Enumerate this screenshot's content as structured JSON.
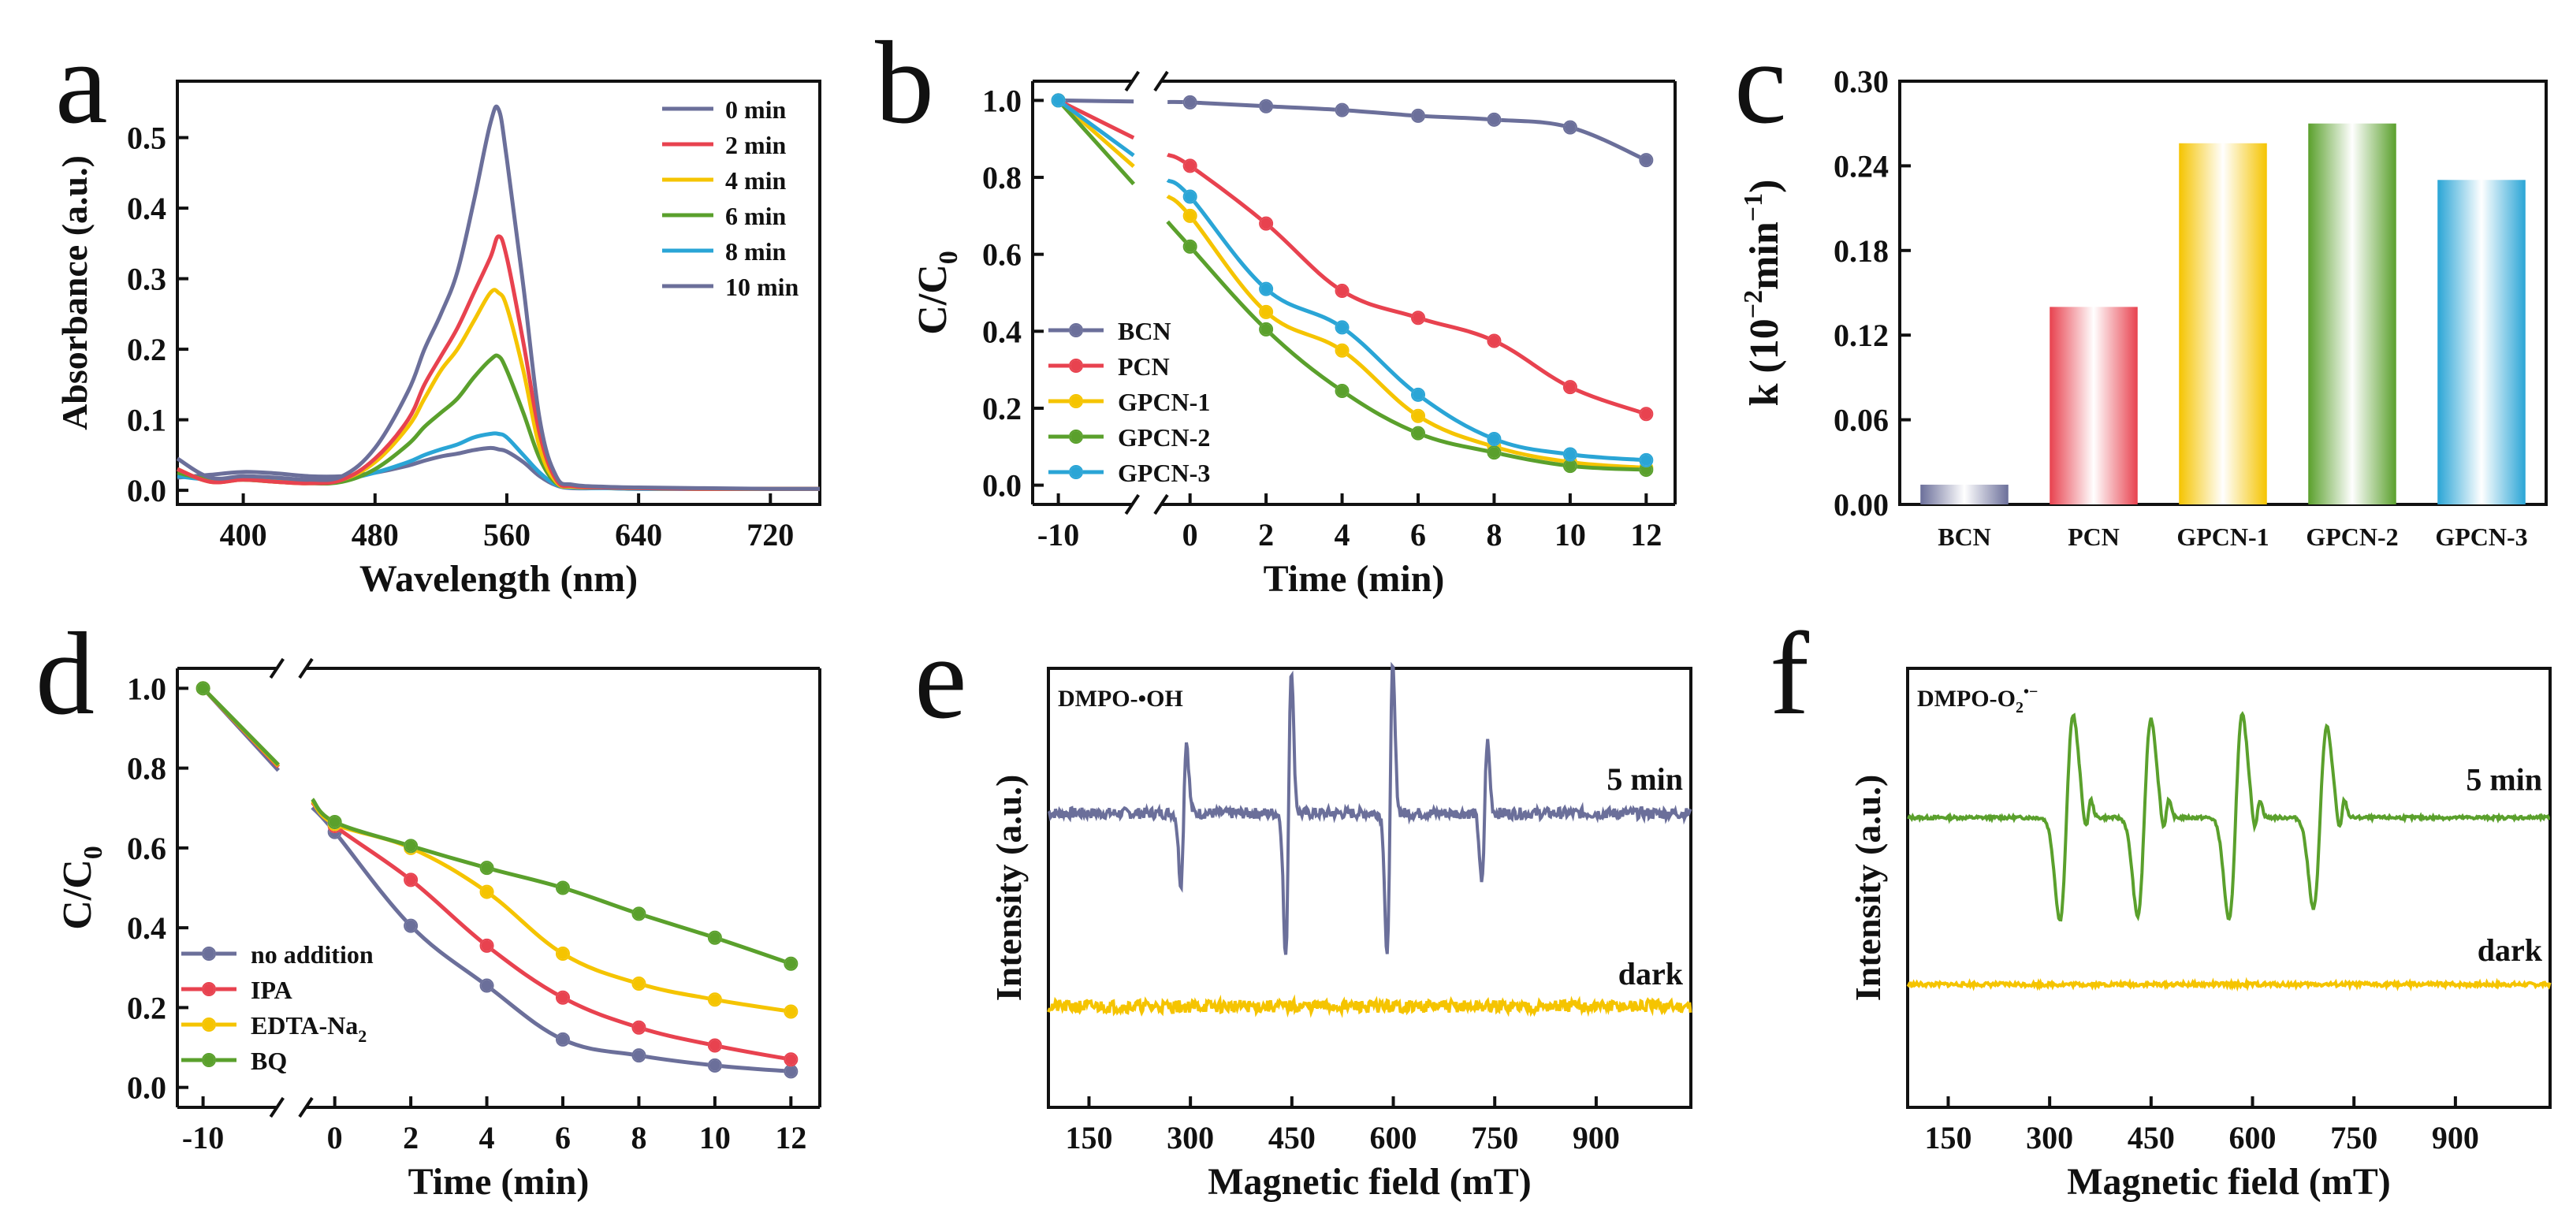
{
  "figure": {
    "panel_letters": [
      "a",
      "b",
      "c",
      "d",
      "e",
      "f"
    ]
  },
  "chart_data": [
    {
      "panel": "a",
      "type": "line",
      "xlabel": "Wavelength (nm)",
      "ylabel": "Absorbance (a.u.)",
      "xlim": [
        360,
        750
      ],
      "ylim": [
        -0.02,
        0.58
      ],
      "xticks": [
        400,
        480,
        560,
        640,
        720
      ],
      "yticks": [
        0.0,
        0.1,
        0.2,
        0.3,
        0.4,
        0.5
      ],
      "x": [
        360,
        380,
        400,
        420,
        440,
        460,
        480,
        500,
        510,
        520,
        530,
        540,
        550,
        555,
        560,
        570,
        580,
        590,
        600,
        620,
        640,
        680,
        720,
        750
      ],
      "series": [
        {
          "name": "0 min",
          "color": "#6b6f9a",
          "values": [
            0.045,
            0.018,
            0.02,
            0.018,
            0.015,
            0.02,
            0.06,
            0.14,
            0.2,
            0.25,
            0.31,
            0.41,
            0.52,
            0.54,
            0.47,
            0.29,
            0.1,
            0.02,
            0.008,
            0.005,
            0.004,
            0.003,
            0.002,
            0.002
          ]
        },
        {
          "name": "2 min",
          "color": "#e8424f",
          "values": [
            0.03,
            0.012,
            0.015,
            0.012,
            0.01,
            0.015,
            0.045,
            0.1,
            0.15,
            0.19,
            0.23,
            0.28,
            0.33,
            0.36,
            0.33,
            0.21,
            0.08,
            0.015,
            0.006,
            0.004,
            0.003,
            0.002,
            0.002,
            0.002
          ]
        },
        {
          "name": "4 min",
          "color": "#f5c400",
          "values": [
            0.03,
            0.012,
            0.015,
            0.012,
            0.01,
            0.015,
            0.04,
            0.09,
            0.13,
            0.17,
            0.2,
            0.24,
            0.28,
            0.28,
            0.26,
            0.17,
            0.06,
            0.012,
            0.005,
            0.004,
            0.003,
            0.002,
            0.002,
            0.002
          ]
        },
        {
          "name": "6 min",
          "color": "#5aa02c",
          "values": [
            0.025,
            0.015,
            0.015,
            0.012,
            0.01,
            0.012,
            0.03,
            0.065,
            0.09,
            0.11,
            0.13,
            0.16,
            0.185,
            0.19,
            0.17,
            0.11,
            0.045,
            0.01,
            0.005,
            0.004,
            0.003,
            0.002,
            0.002,
            0.002
          ]
        },
        {
          "name": "8 min",
          "color": "#2aa5d6",
          "values": [
            0.02,
            0.015,
            0.015,
            0.013,
            0.012,
            0.015,
            0.025,
            0.04,
            0.05,
            0.058,
            0.065,
            0.075,
            0.08,
            0.08,
            0.075,
            0.05,
            0.025,
            0.008,
            0.004,
            0.003,
            0.002,
            0.002,
            0.002,
            0.002
          ]
        },
        {
          "name": "10 min",
          "color": "#6b6f9a",
          "values": [
            0.018,
            0.022,
            0.026,
            0.024,
            0.02,
            0.02,
            0.025,
            0.035,
            0.042,
            0.048,
            0.052,
            0.057,
            0.06,
            0.058,
            0.055,
            0.04,
            0.02,
            0.007,
            0.003,
            0.003,
            0.002,
            0.002,
            0.002,
            0.002
          ]
        }
      ]
    },
    {
      "panel": "b",
      "type": "line",
      "xlabel": "Time (min)",
      "ylabel": "C/C",
      "ylabel_sub": "0",
      "ylim": [
        -0.05,
        1.05
      ],
      "xticks": [
        -10,
        0,
        2,
        4,
        6,
        8,
        10,
        12
      ],
      "yticks": [
        0.0,
        0.2,
        0.4,
        0.6,
        0.8,
        1.0
      ],
      "x": [
        -10,
        0,
        2,
        4,
        6,
        8,
        10,
        12
      ],
      "series": [
        {
          "name": "BCN",
          "color": "#6b6f9a",
          "values": [
            1.0,
            0.995,
            0.985,
            0.975,
            0.96,
            0.95,
            0.93,
            0.845
          ]
        },
        {
          "name": "PCN",
          "color": "#e8424f",
          "values": [
            1.0,
            0.83,
            0.68,
            0.505,
            0.435,
            0.375,
            0.255,
            0.185
          ]
        },
        {
          "name": "GPCN-1",
          "color": "#f5c400",
          "values": [
            1.0,
            0.7,
            0.45,
            0.35,
            0.18,
            0.1,
            0.06,
            0.045
          ]
        },
        {
          "name": "GPCN-2",
          "color": "#5aa02c",
          "values": [
            1.0,
            0.62,
            0.405,
            0.245,
            0.135,
            0.085,
            0.05,
            0.04
          ]
        },
        {
          "name": "GPCN-3",
          "color": "#2aa5d6",
          "values": [
            1.0,
            0.75,
            0.51,
            0.41,
            0.235,
            0.12,
            0.08,
            0.065
          ]
        }
      ]
    },
    {
      "panel": "c",
      "type": "bar",
      "xlabel": "",
      "ylabel": "k (10",
      "ylabel_sup": "−2",
      "ylabel_mid": "min",
      "ylabel_sup2": "−1",
      "ylabel_end": ")",
      "ylim": [
        0,
        0.3
      ],
      "yticks": [
        "0.00",
        "0.06",
        "0.12",
        "0.18",
        "0.24",
        "0.30"
      ],
      "categories": [
        "BCN",
        "PCN",
        "GPCN-1",
        "GPCN-2",
        "GPCN-3"
      ],
      "values": [
        0.014,
        0.14,
        0.256,
        0.27,
        0.23
      ],
      "colors": [
        "#6b6f9a",
        "#e8424f",
        "#f5c400",
        "#5aa02c",
        "#2aa5d6"
      ]
    },
    {
      "panel": "d",
      "type": "line",
      "xlabel": "Time (min)",
      "ylabel": "C/C",
      "ylabel_sub": "0",
      "ylim": [
        -0.05,
        1.05
      ],
      "xticks": [
        -10,
        0,
        2,
        4,
        6,
        8,
        10,
        12
      ],
      "yticks": [
        0.0,
        0.2,
        0.4,
        0.6,
        0.8,
        1.0
      ],
      "x": [
        -10,
        0,
        2,
        4,
        6,
        8,
        10,
        12
      ],
      "series": [
        {
          "name": "no addition",
          "color": "#6b6f9a",
          "values": [
            1.0,
            0.64,
            0.405,
            0.255,
            0.12,
            0.08,
            0.055,
            0.04
          ]
        },
        {
          "name": "IPA",
          "color": "#e8424f",
          "values": [
            1.0,
            0.655,
            0.52,
            0.355,
            0.225,
            0.15,
            0.105,
            0.07
          ]
        },
        {
          "name": "EDTA-Na",
          "name_sub": "2",
          "color": "#f5c400",
          "values": [
            1.0,
            0.66,
            0.6,
            0.49,
            0.335,
            0.26,
            0.22,
            0.19
          ]
        },
        {
          "name": "BQ",
          "color": "#5aa02c",
          "values": [
            1.0,
            0.665,
            0.605,
            0.55,
            0.5,
            0.435,
            0.375,
            0.31
          ]
        }
      ]
    },
    {
      "panel": "e",
      "type": "line",
      "xlabel": "Magnetic field (mT)",
      "ylabel": "Intensity (a.u.)",
      "xlim": [
        90,
        1040
      ],
      "xticks": [
        150,
        300,
        450,
        600,
        750,
        900
      ],
      "annotation": "DMPO-•OH",
      "peak_fields": [
        290,
        445,
        595,
        735
      ],
      "series": [
        {
          "name": "5 min",
          "color": "#6b6f9a"
        },
        {
          "name": "dark",
          "color": "#f5c400"
        }
      ]
    },
    {
      "panel": "f",
      "type": "line",
      "xlabel": "Magnetic field (mT)",
      "ylabel": "Intensity (a.u.)",
      "xlim": [
        90,
        1040
      ],
      "xticks": [
        150,
        300,
        450,
        600,
        750,
        900
      ],
      "annotation": "DMPO-O",
      "annotation_sub": "2",
      "annotation_sup": "•−",
      "peak_fields": [
        325,
        440,
        575,
        700
      ],
      "series": [
        {
          "name": "5 min",
          "color": "#5aa02c"
        },
        {
          "name": "dark",
          "color": "#f5c400"
        }
      ]
    }
  ]
}
